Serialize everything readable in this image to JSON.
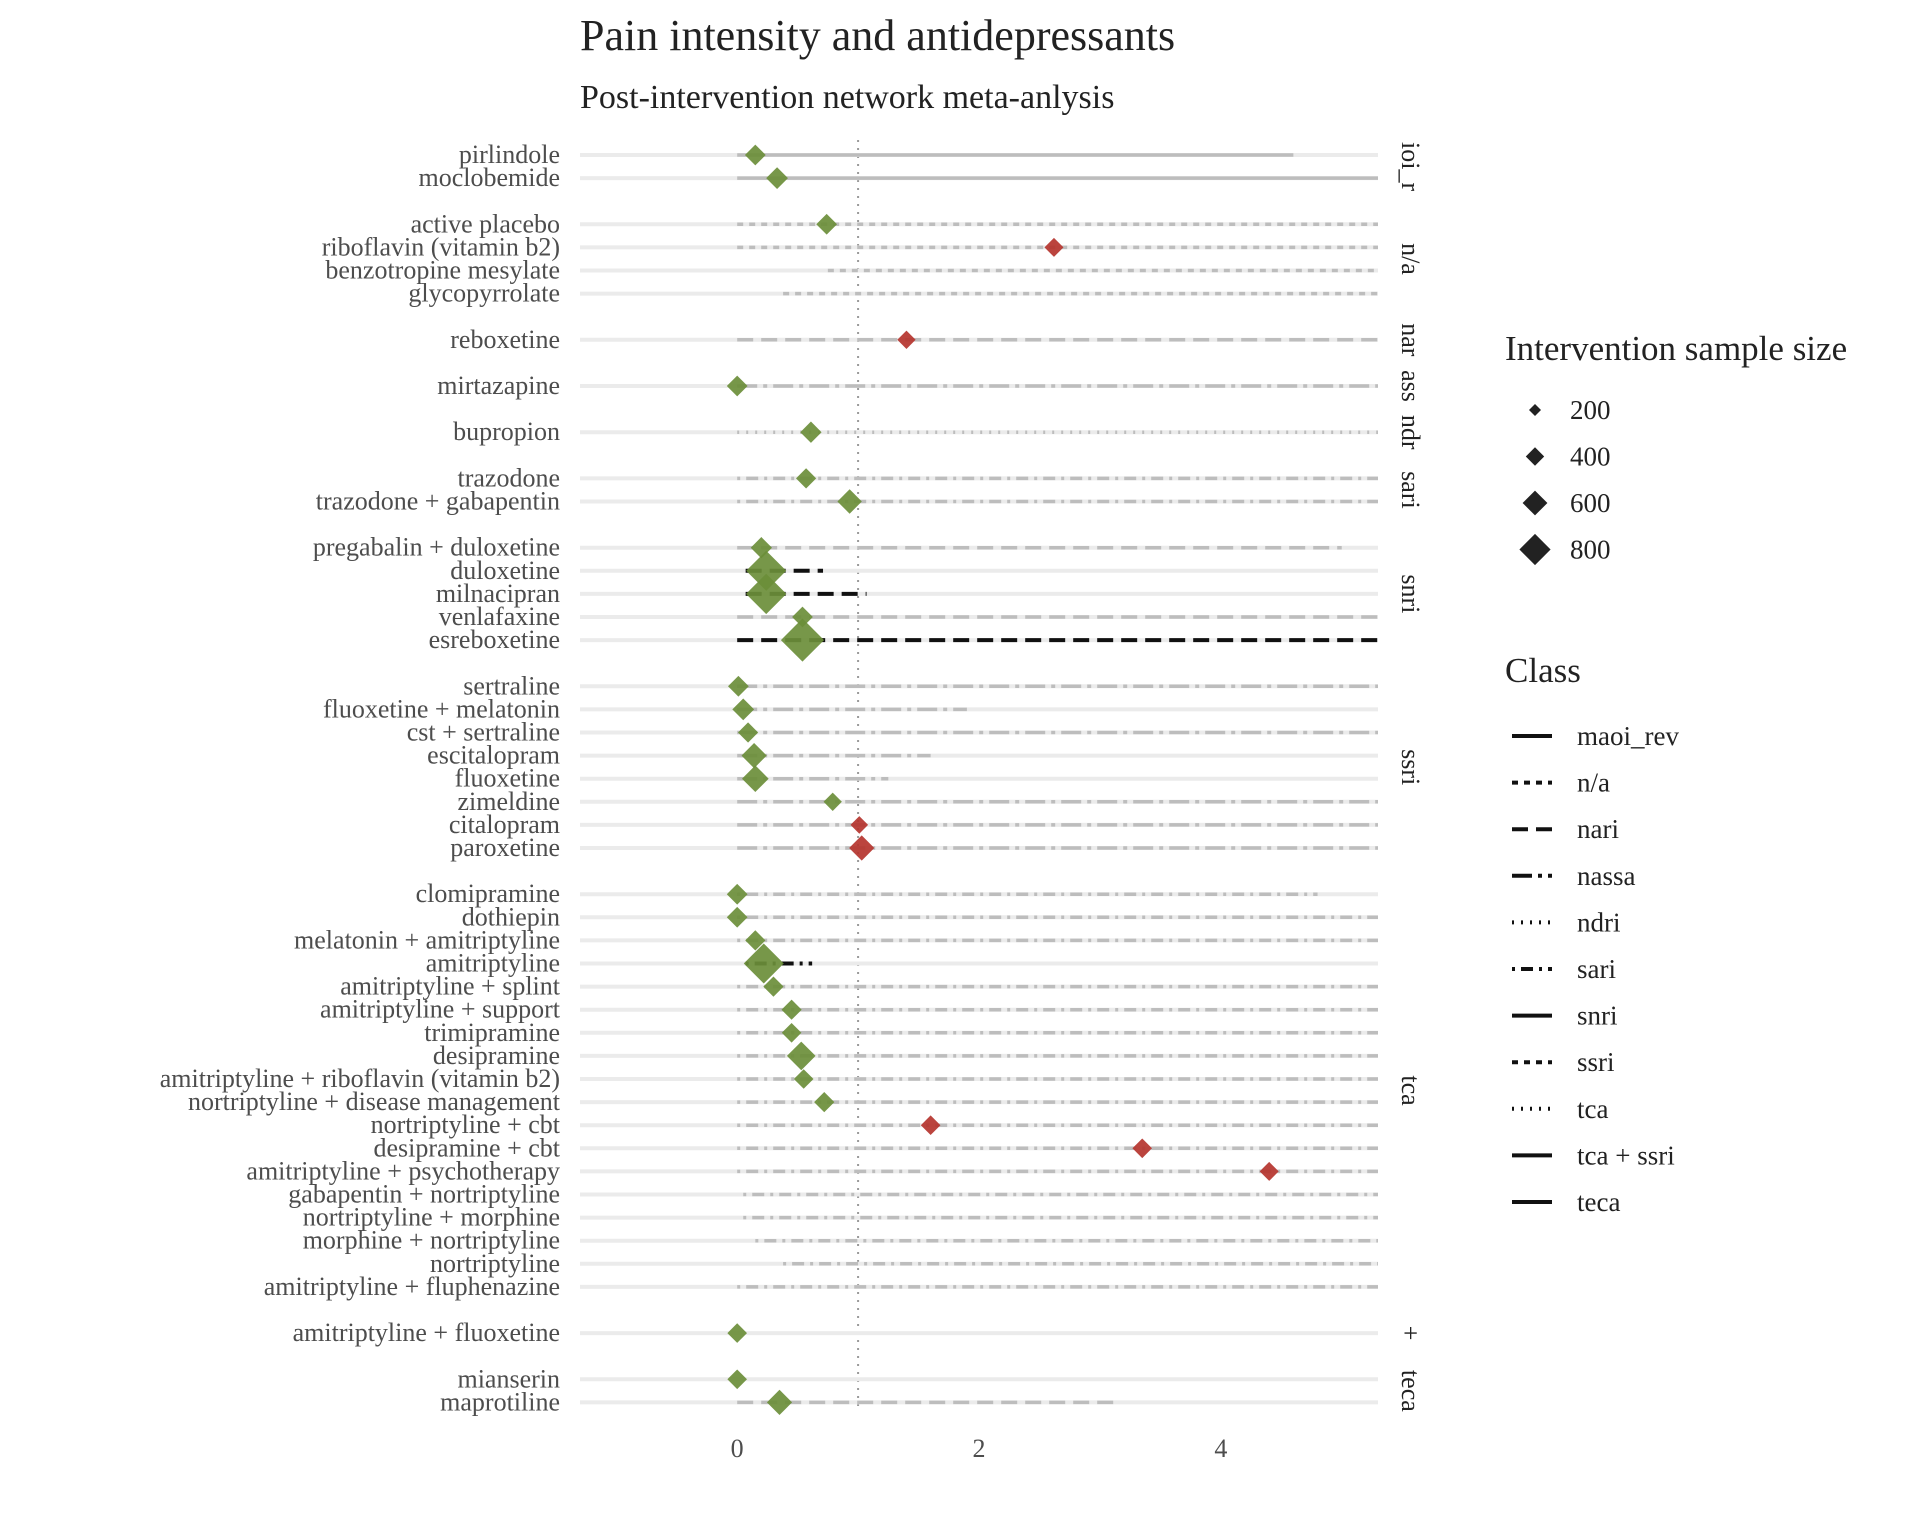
{
  "chart_data": {
    "type": "scatter",
    "title": "Pain intensity and antidepressants",
    "subtitle": "Post-intervention network meta-anlysis",
    "xlabel": "",
    "ylabel": "",
    "xlim": [
      -1.3,
      5.3
    ],
    "x_ticks": [
      0,
      2,
      4
    ],
    "reference_line_x": 1,
    "grid": false,
    "colors": {
      "favours_low": "#6b8e3a",
      "favours_high": "#b5342e",
      "interval": "#bdbdbd",
      "row_track": "#ebebeb",
      "reference": "#9a9a9a"
    },
    "legend_size_title": "Intervention sample size",
    "legend_size_values": [
      200,
      400,
      600,
      800
    ],
    "legend_class_title": "Class",
    "legend_class_entries": [
      {
        "label": "maoi_rev",
        "dash": "solid"
      },
      {
        "label": "n/a",
        "dash": "dashed"
      },
      {
        "label": "nari",
        "dash": "longdash"
      },
      {
        "label": "nassa",
        "dash": "twodash"
      },
      {
        "label": "ndri",
        "dash": "dotted"
      },
      {
        "label": "sari",
        "dash": "dotdash"
      },
      {
        "label": "snri",
        "dash": "solid"
      },
      {
        "label": "ssri",
        "dash": "dashed"
      },
      {
        "label": "tca",
        "dash": "dotted"
      },
      {
        "label": "tca + ssri",
        "dash": "solid"
      },
      {
        "label": "teca",
        "dash": "solid"
      }
    ],
    "groups": [
      {
        "facet_label": "ioi_r",
        "dash": "solid",
        "items": [
          {
            "name": "pirlindole",
            "estimate": 0.15,
            "lower": 0.0,
            "upper": 4.6,
            "n": 100
          },
          {
            "name": "moclobemide",
            "estimate": 0.33,
            "lower": 0.0,
            "upper": 5.3,
            "n": 120
          }
        ]
      },
      {
        "facet_label": "n/a",
        "dash": "dashed",
        "items": [
          {
            "name": "active placebo",
            "estimate": 0.74,
            "lower": 0.0,
            "upper": 5.3,
            "n": 100
          },
          {
            "name": "riboflavin (vitamin b2)",
            "estimate": 2.62,
            "lower": 0.0,
            "upper": 5.3,
            "n": 70
          },
          {
            "name": "benzotropine mesylate",
            "estimate": null,
            "lower": 0.75,
            "upper": 5.3,
            "n": null
          },
          {
            "name": "glycopyrrolate",
            "estimate": null,
            "lower": 0.38,
            "upper": 5.3,
            "n": null
          }
        ]
      },
      {
        "facet_label": "nar",
        "dash": "longdash",
        "items": [
          {
            "name": "reboxetine",
            "estimate": 1.4,
            "lower": 0.0,
            "upper": 5.3,
            "n": 60
          }
        ]
      },
      {
        "facet_label": "ass",
        "dash": "twodash",
        "items": [
          {
            "name": "mirtazapine",
            "estimate": 0.0,
            "lower": 0.0,
            "upper": 5.3,
            "n": 100
          }
        ]
      },
      {
        "facet_label": "ndr",
        "dash": "dotted",
        "items": [
          {
            "name": "bupropion",
            "estimate": 0.61,
            "lower": 0.0,
            "upper": 5.3,
            "n": 110
          }
        ]
      },
      {
        "facet_label": "sari",
        "dash": "dotdash",
        "items": [
          {
            "name": "trazodone",
            "estimate": 0.57,
            "lower": 0.0,
            "upper": 5.3,
            "n": 90
          },
          {
            "name": "trazodone + gabapentin",
            "estimate": 0.93,
            "lower": 0.0,
            "upper": 5.3,
            "n": 180
          }
        ]
      },
      {
        "facet_label": "snri",
        "dash": "longdash",
        "items": [
          {
            "name": "pregabalin + duloxetine",
            "estimate": 0.2,
            "lower": 0.0,
            "upper": 5.0,
            "n": 110
          },
          {
            "name": "duloxetine",
            "estimate": 0.24,
            "lower": 0.07,
            "upper": 0.71,
            "n": 780
          },
          {
            "name": "milnacipran",
            "estimate": 0.24,
            "lower": 0.07,
            "upper": 1.07,
            "n": 800
          },
          {
            "name": "venlafaxine",
            "estimate": 0.54,
            "lower": 0.0,
            "upper": 5.3,
            "n": 100
          },
          {
            "name": "esreboxetine",
            "estimate": 0.54,
            "lower": 0.0,
            "upper": 5.3,
            "n": 950
          }
        ]
      },
      {
        "facet_label": "ssri",
        "dash": "twodash",
        "items": [
          {
            "name": "sertraline",
            "estimate": 0.01,
            "lower": 0.0,
            "upper": 5.3,
            "n": 100
          },
          {
            "name": "fluoxetine + melatonin",
            "estimate": 0.05,
            "lower": 0.0,
            "upper": 1.9,
            "n": 120
          },
          {
            "name": "cst + sertraline",
            "estimate": 0.09,
            "lower": 0.0,
            "upper": 5.3,
            "n": 90
          },
          {
            "name": "escitalopram",
            "estimate": 0.14,
            "lower": 0.0,
            "upper": 1.6,
            "n": 200
          },
          {
            "name": "fluoxetine",
            "estimate": 0.15,
            "lower": 0.0,
            "upper": 1.25,
            "n": 240
          },
          {
            "name": "zimeldine",
            "estimate": 0.79,
            "lower": 0.0,
            "upper": 5.3,
            "n": 60
          },
          {
            "name": "citalopram",
            "estimate": 1.01,
            "lower": 0.0,
            "upper": 5.3,
            "n": 50
          },
          {
            "name": "paroxetine",
            "estimate": 1.03,
            "lower": 0.0,
            "upper": 5.3,
            "n": 200
          }
        ]
      },
      {
        "facet_label": "tca",
        "dash": "dotdash",
        "items": [
          {
            "name": "clomipramine",
            "estimate": 0.0,
            "lower": 0.0,
            "upper": 4.8,
            "n": 100
          },
          {
            "name": "dothiepin",
            "estimate": 0.0,
            "lower": 0.0,
            "upper": 5.3,
            "n": 100
          },
          {
            "name": "melatonin + amitriptyline",
            "estimate": 0.15,
            "lower": 0.0,
            "upper": 5.3,
            "n": 90
          },
          {
            "name": "amitriptyline",
            "estimate": 0.22,
            "lower": 0.07,
            "upper": 0.62,
            "n": 780
          },
          {
            "name": "amitriptyline + splint",
            "estimate": 0.3,
            "lower": 0.0,
            "upper": 5.3,
            "n": 90
          },
          {
            "name": "amitriptyline + support",
            "estimate": 0.45,
            "lower": 0.0,
            "upper": 5.3,
            "n": 90
          },
          {
            "name": "trimipramine",
            "estimate": 0.45,
            "lower": 0.0,
            "upper": 5.3,
            "n": 80
          },
          {
            "name": "desipramine",
            "estimate": 0.53,
            "lower": 0.0,
            "upper": 5.3,
            "n": 300
          },
          {
            "name": "amitriptyline + riboflavin (vitamin b2)",
            "estimate": 0.55,
            "lower": 0.0,
            "upper": 5.3,
            "n": 80
          },
          {
            "name": "nortriptyline + disease management",
            "estimate": 0.72,
            "lower": 0.0,
            "upper": 5.3,
            "n": 90
          },
          {
            "name": "nortriptyline + cbt",
            "estimate": 1.6,
            "lower": 0.0,
            "upper": 5.3,
            "n": 80
          },
          {
            "name": "desipramine + cbt",
            "estimate": 3.35,
            "lower": 0.0,
            "upper": 5.3,
            "n": 80
          },
          {
            "name": "amitriptyline + psychotherapy",
            "estimate": 4.4,
            "lower": 0.0,
            "upper": 5.3,
            "n": 70
          },
          {
            "name": "gabapentin + nortriptyline",
            "estimate": null,
            "lower": 0.05,
            "upper": 5.3,
            "n": null
          },
          {
            "name": "nortriptyline + morphine",
            "estimate": null,
            "lower": 0.05,
            "upper": 5.3,
            "n": null
          },
          {
            "name": "morphine + nortriptyline",
            "estimate": null,
            "lower": 0.15,
            "upper": 5.3,
            "n": null
          },
          {
            "name": "nortriptyline",
            "estimate": null,
            "lower": 0.38,
            "upper": 5.3,
            "n": null
          },
          {
            "name": "amitriptyline + fluphenazine",
            "estimate": null,
            "lower": 0.0,
            "upper": 5.3,
            "n": null
          }
        ]
      },
      {
        "facet_label": "+",
        "dash": "solid",
        "items": [
          {
            "name": "amitriptyline + fluoxetine",
            "estimate": 0.0,
            "lower": null,
            "upper": null,
            "n": 80
          }
        ]
      },
      {
        "facet_label": "teca",
        "dash": "longdash",
        "items": [
          {
            "name": "mianserin",
            "estimate": 0.0,
            "lower": null,
            "upper": null,
            "n": 80
          },
          {
            "name": "maprotiline",
            "estimate": 0.35,
            "lower": 0.0,
            "upper": 3.15,
            "n": 200
          }
        ]
      }
    ]
  }
}
